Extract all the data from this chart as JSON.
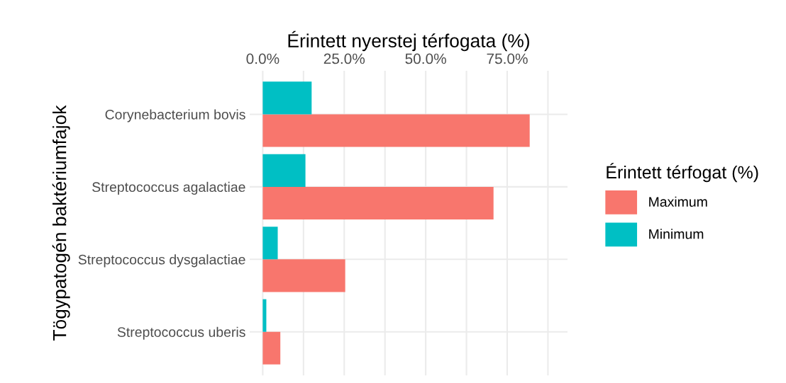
{
  "chart_data": {
    "type": "bar",
    "orientation": "horizontal",
    "xlabel": "Érintett nyerstej térfogata (%)",
    "ylabel": "Tögypatogén baktériumfajok",
    "legend_title": "Érintett térfogat (%)",
    "categories": [
      "Corynebacterium bovis",
      "Streptococcus agalactiae",
      "Streptococcus dysgalactiae",
      "Streptococcus uberis"
    ],
    "series": [
      {
        "name": "Maximum",
        "color": "#f8766d",
        "values": [
          81.9,
          70.8,
          25.3,
          5.4
        ]
      },
      {
        "name": "Minimum",
        "color": "#00bfc4",
        "values": [
          15.0,
          13.1,
          4.6,
          1.1
        ]
      }
    ],
    "xlim": [
      -4,
      93.5
    ],
    "xticks": [
      {
        "value": 0,
        "label": "0.0%"
      },
      {
        "value": 12.5,
        "label": null
      },
      {
        "value": 25,
        "label": "25.0%"
      },
      {
        "value": 37.5,
        "label": null
      },
      {
        "value": 50,
        "label": "50.0%"
      },
      {
        "value": 62.5,
        "label": null
      },
      {
        "value": 75,
        "label": "75.0%"
      },
      {
        "value": 87.5,
        "label": null
      }
    ],
    "grid": true,
    "legend": "right"
  }
}
